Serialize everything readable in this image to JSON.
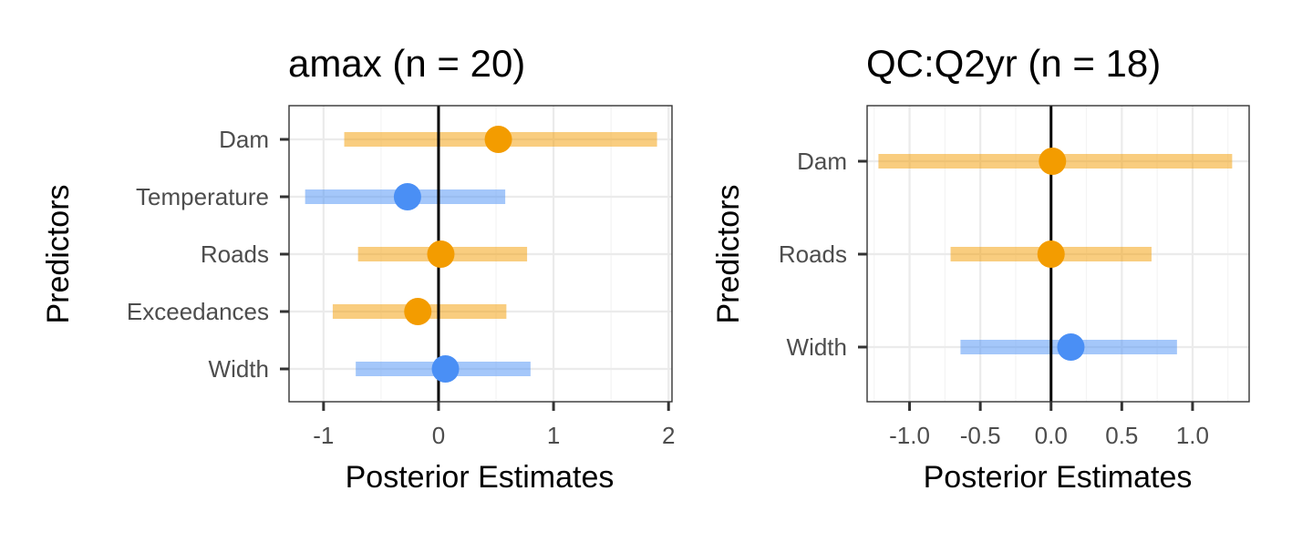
{
  "colors": {
    "positive": "#f39c00",
    "negative": "#4a8ff5"
  },
  "chart_data": [
    {
      "type": "forest",
      "title": "amax (n = 20)",
      "xlabel": "Posterior Estimates",
      "ylabel": "Predictors",
      "xlim": [
        -1.3,
        2.03
      ],
      "xticks": [
        -1,
        0,
        1,
        2
      ],
      "xtick_labels": [
        "-1",
        "0",
        "1",
        "2"
      ],
      "reference_line": 0,
      "grid": true,
      "categories": [
        "Dam",
        "Temperature",
        "Roads",
        "Exceedances",
        "Width"
      ],
      "estimates": [
        {
          "predictor": "Dam",
          "estimate": 0.52,
          "lower": -0.82,
          "upper": 1.9,
          "direction": "positive"
        },
        {
          "predictor": "Temperature",
          "estimate": -0.27,
          "lower": -1.16,
          "upper": 0.58,
          "direction": "negative"
        },
        {
          "predictor": "Roads",
          "estimate": 0.02,
          "lower": -0.7,
          "upper": 0.77,
          "direction": "positive"
        },
        {
          "predictor": "Exceedances",
          "estimate": -0.18,
          "lower": -0.92,
          "upper": 0.59,
          "direction": "positive"
        },
        {
          "predictor": "Width",
          "estimate": 0.06,
          "lower": -0.72,
          "upper": 0.8,
          "direction": "negative"
        }
      ]
    },
    {
      "type": "forest",
      "title": "QC:Q2yr (n = 18)",
      "xlabel": "Posterior Estimates",
      "ylabel": "Predictors",
      "xlim": [
        -1.3,
        1.4
      ],
      "xticks": [
        -1.0,
        -0.5,
        0.0,
        0.5,
        1.0
      ],
      "xtick_labels": [
        "-1.0",
        "-0.5",
        "0.0",
        "0.5",
        "1.0"
      ],
      "reference_line": 0,
      "grid": true,
      "categories": [
        "Dam",
        "Roads",
        "Width"
      ],
      "estimates": [
        {
          "predictor": "Dam",
          "estimate": 0.01,
          "lower": -1.22,
          "upper": 1.28,
          "direction": "positive"
        },
        {
          "predictor": "Roads",
          "estimate": 0.0,
          "lower": -0.71,
          "upper": 0.71,
          "direction": "positive"
        },
        {
          "predictor": "Width",
          "estimate": 0.14,
          "lower": -0.64,
          "upper": 0.89,
          "direction": "negative"
        }
      ]
    }
  ]
}
